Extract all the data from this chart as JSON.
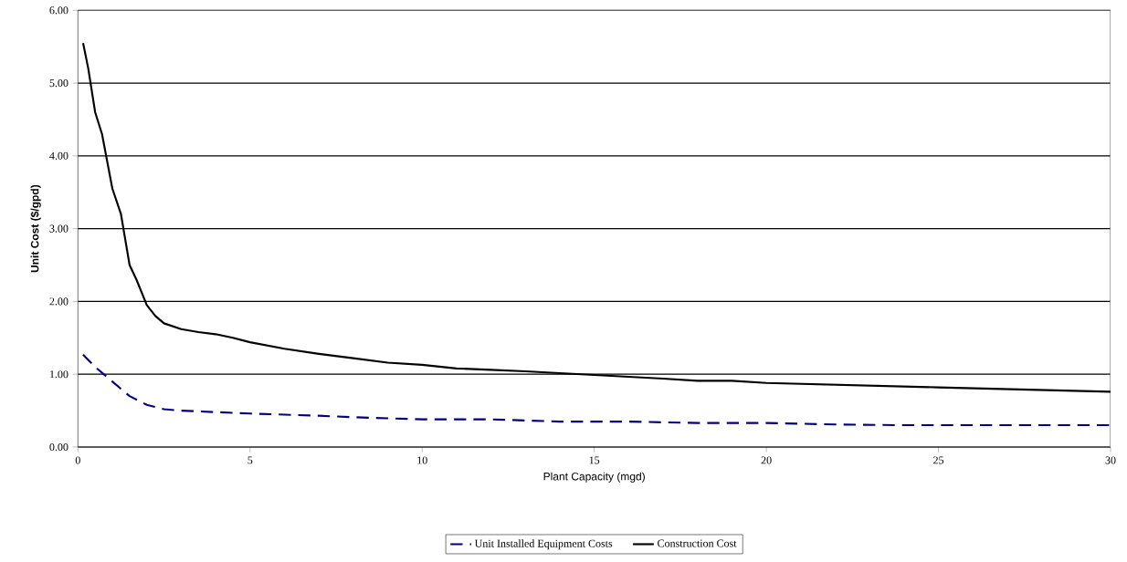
{
  "chart_data": {
    "type": "line",
    "xlabel": "Plant Capacity (mgd)",
    "ylabel": "Unit Cost ($/gpd)",
    "xlim": [
      0,
      30
    ],
    "xticks": [
      0,
      5,
      10,
      15,
      20,
      25,
      30
    ],
    "ylim": [
      0,
      6
    ],
    "yticks": [
      {
        "value": 0,
        "label": "0.00"
      },
      {
        "value": 1,
        "label": "1.00"
      },
      {
        "value": 2,
        "label": "2.00"
      },
      {
        "value": 3,
        "label": "3.00"
      },
      {
        "value": 4,
        "label": "4.00"
      },
      {
        "value": 5,
        "label": "5.00"
      },
      {
        "value": 6,
        "label": "6.00"
      }
    ],
    "grid": "y",
    "legend": "bottom",
    "marker": "none",
    "series": [
      {
        "name": "Unit Installed Equipment Costs",
        "color": "#000080",
        "line_style": "dashed",
        "x": [
          0.15,
          0.5,
          1,
          1.5,
          2,
          2.5,
          3,
          4,
          5,
          7,
          8,
          10,
          12,
          14,
          16,
          18,
          20,
          22,
          24,
          30
        ],
        "values": [
          1.27,
          1.1,
          0.9,
          0.7,
          0.58,
          0.52,
          0.5,
          0.48,
          0.46,
          0.43,
          0.41,
          0.38,
          0.38,
          0.35,
          0.35,
          0.33,
          0.33,
          0.31,
          0.3,
          0.3
        ]
      },
      {
        "name": "Construction Cost",
        "color": "#000000",
        "line_style": "solid",
        "x": [
          0.15,
          0.3,
          0.5,
          0.7,
          1,
          1.25,
          1.5,
          1.7,
          2,
          2.25,
          2.5,
          3,
          3.5,
          4,
          4.5,
          5,
          6,
          7,
          8,
          9,
          10,
          11,
          12,
          13,
          15,
          17,
          18,
          19,
          20,
          25,
          30
        ],
        "values": [
          5.55,
          5.2,
          4.6,
          4.3,
          3.55,
          3.2,
          2.5,
          2.3,
          1.95,
          1.8,
          1.7,
          1.62,
          1.58,
          1.55,
          1.5,
          1.44,
          1.35,
          1.28,
          1.22,
          1.16,
          1.13,
          1.08,
          1.06,
          1.04,
          0.99,
          0.94,
          0.91,
          0.91,
          0.88,
          0.82,
          0.76
        ]
      }
    ]
  }
}
